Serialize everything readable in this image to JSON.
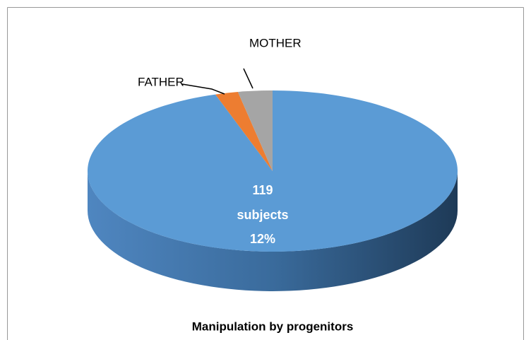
{
  "chart_data": {
    "type": "pie",
    "title": "Manipulation by progenitors",
    "categories": [
      null,
      "FATHER",
      "MOTHER"
    ],
    "values": [
      95,
      2,
      3
    ],
    "colors": [
      "#5b9bd5",
      "#ed7d31",
      "#a5a5a5"
    ],
    "center_label": [
      "119",
      "subjects",
      "12%"
    ]
  }
}
